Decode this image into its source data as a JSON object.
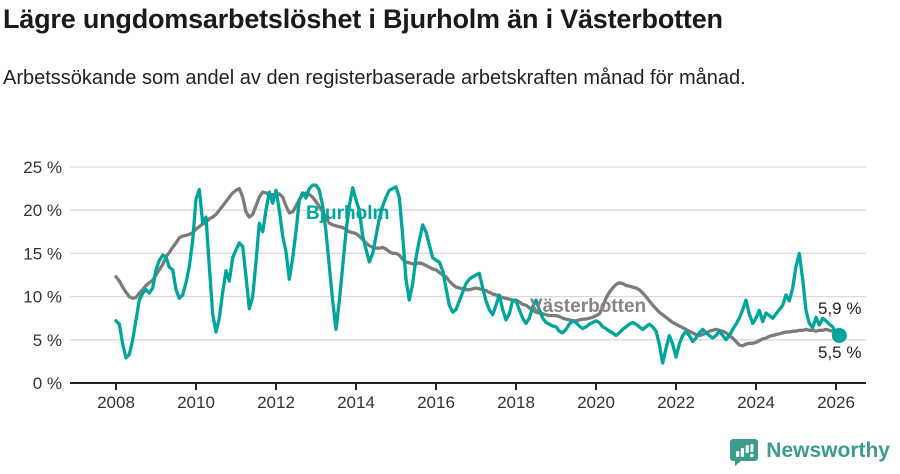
{
  "header": {
    "title": "Lägre ungdomsarbetslöshet i Bjurholm än i Västerbotten",
    "subtitle": "Arbetssökande som andel av den registerbaserade arbetskraften månad för månad."
  },
  "footer": {
    "brand": "Newsworthy",
    "logo_icon": "bar-chart-speech-bubble-icon"
  },
  "colors": {
    "bjurholm_line": "#00a59b",
    "vasterbotten_line": "#7b7b7b",
    "vasterbotten_label": "#858585",
    "axis": "#222222",
    "gridline": "#d9d9d9",
    "tick_text": "#333333",
    "brand_teal": "#3d9b8f"
  },
  "chart_data": {
    "type": "line",
    "title": "Lägre ungdomsarbetslöshet i Bjurholm än i Västerbotten",
    "subtitle": "Arbetssökande som andel av den registerbaserade arbetskraften månad för månad.",
    "x_unit": "month",
    "x_start": "2008-01",
    "x_end": "2026-02",
    "points_per_year": 12,
    "ylim": [
      0,
      25
    ],
    "grid": "horizontal",
    "yticks": [
      0,
      5,
      10,
      15,
      20,
      25
    ],
    "ytick_labels": [
      "0 %",
      "5 %",
      "10 %",
      "15 %",
      "20 %",
      "25 %"
    ],
    "xticks": [
      2008,
      2010,
      2012,
      2014,
      2016,
      2018,
      2020,
      2022,
      2024,
      2026
    ],
    "xtick_labels": [
      "2008",
      "2010",
      "2012",
      "2014",
      "2016",
      "2018",
      "2020",
      "2022",
      "2024",
      "2026"
    ],
    "legend_position": "inline-labels",
    "series": [
      {
        "name": "Västerbotten",
        "color": "#7b7b7b",
        "end_label": "5,9 %",
        "end_value": 5.9,
        "end_dot_radius": 4,
        "values": [
          12.3,
          11.8,
          11.1,
          10.5,
          10.0,
          9.8,
          9.9,
          10.4,
          10.8,
          11.3,
          11.6,
          11.9,
          12.5,
          13.1,
          13.7,
          14.6,
          15.1,
          15.7,
          16.2,
          16.8,
          17.0,
          17.1,
          17.2,
          17.4,
          17.8,
          18.1,
          18.4,
          18.6,
          19.0,
          19.2,
          19.5,
          20.0,
          20.5,
          21.0,
          21.5,
          22.0,
          22.3,
          22.5,
          21.5,
          19.8,
          19.2,
          19.5,
          20.5,
          21.5,
          22.1,
          22.0,
          21.8,
          21.8,
          21.8,
          21.9,
          21.5,
          20.5,
          19.7,
          19.8,
          20.5,
          21.2,
          21.8,
          22.0,
          21.8,
          21.5,
          21.0,
          20.4,
          19.8,
          19.2,
          18.5,
          18.3,
          18.2,
          18.1,
          18.0,
          17.8,
          17.5,
          17.4,
          17.3,
          17.0,
          16.6,
          16.2,
          15.9,
          15.7,
          15.6,
          15.6,
          15.7,
          15.5,
          15.2,
          15.0,
          15.0,
          14.8,
          14.3,
          14.0,
          13.9,
          13.8,
          13.8,
          13.9,
          13.8,
          13.6,
          13.4,
          13.2,
          13.1,
          12.8,
          12.5,
          12.3,
          11.8,
          11.4,
          11.1,
          11.0,
          10.9,
          10.8,
          10.8,
          10.9,
          11.0,
          10.9,
          10.8,
          10.7,
          10.5,
          10.3,
          10.2,
          10.0,
          9.9,
          9.8,
          9.7,
          9.6,
          9.6,
          9.4,
          9.1,
          9.0,
          8.7,
          8.4,
          8.2,
          8.1,
          8.0,
          7.9,
          7.8,
          7.8,
          7.8,
          7.7,
          7.5,
          7.4,
          7.3,
          7.2,
          7.2,
          7.3,
          7.4,
          7.4,
          7.5,
          7.6,
          7.8,
          8.0,
          8.8,
          9.8,
          10.5,
          11.0,
          11.4,
          11.6,
          11.5,
          11.3,
          11.2,
          11.1,
          11.0,
          10.8,
          10.4,
          10.0,
          9.5,
          9.0,
          8.6,
          8.2,
          7.9,
          7.6,
          7.3,
          7.0,
          6.8,
          6.6,
          6.4,
          6.2,
          6.0,
          5.8,
          5.6,
          5.5,
          5.6,
          5.8,
          6.0,
          6.1,
          6.2,
          6.1,
          6.0,
          5.8,
          5.5,
          5.2,
          4.8,
          4.4,
          4.3,
          4.5,
          4.6,
          4.6,
          4.7,
          4.9,
          5.1,
          5.2,
          5.4,
          5.5,
          5.6,
          5.7,
          5.8,
          5.9,
          5.9,
          6.0,
          6.0,
          6.1,
          6.1,
          6.2,
          6.1,
          6.1,
          6.0,
          6.1,
          6.1,
          6.2,
          6.1,
          6.0,
          6.0,
          5.9
        ]
      },
      {
        "name": "Bjurholm",
        "color": "#00a59b",
        "end_label": "5,5 %",
        "end_value": 5.5,
        "end_dot_radius": 7.5,
        "values": [
          7.2,
          6.8,
          4.5,
          2.9,
          3.3,
          5.0,
          7.3,
          9.6,
          10.4,
          10.8,
          10.4,
          11.0,
          13.1,
          14.2,
          14.8,
          14.6,
          13.4,
          13.1,
          10.8,
          9.8,
          10.2,
          11.6,
          13.5,
          16.5,
          21.3,
          22.4,
          18.5,
          19.2,
          13.5,
          8.0,
          5.9,
          7.5,
          10.5,
          13.0,
          11.8,
          14.5,
          15.4,
          16.2,
          15.8,
          12.3,
          8.6,
          10.0,
          14.0,
          18.5,
          17.5,
          20.0,
          22.1,
          20.8,
          22.3,
          20.0,
          17.0,
          15.2,
          12.0,
          14.5,
          17.5,
          21.2,
          22.0,
          21.4,
          22.5,
          22.9,
          22.9,
          22.3,
          20.5,
          17.5,
          13.5,
          9.5,
          6.2,
          9.5,
          13.5,
          17.5,
          20.5,
          22.6,
          21.2,
          20.0,
          17.0,
          15.5,
          14.0,
          15.0,
          17.0,
          19.0,
          20.5,
          21.5,
          22.3,
          22.5,
          22.7,
          21.5,
          17.0,
          12.0,
          9.6,
          11.5,
          14.5,
          16.5,
          18.3,
          17.5,
          16.0,
          14.5,
          14.2,
          14.0,
          13.0,
          11.0,
          9.0,
          8.2,
          8.5,
          9.5,
          10.5,
          11.5,
          12.0,
          12.3,
          12.5,
          12.7,
          11.0,
          9.5,
          8.5,
          7.9,
          9.0,
          10.2,
          8.5,
          7.3,
          8.0,
          9.6,
          9.5,
          8.5,
          7.5,
          6.9,
          7.5,
          8.8,
          9.6,
          8.5,
          7.5,
          7.0,
          6.8,
          6.6,
          6.5,
          6.0,
          5.8,
          6.2,
          6.8,
          7.2,
          7.0,
          6.6,
          6.3,
          6.5,
          6.8,
          7.0,
          7.2,
          7.0,
          6.5,
          6.3,
          6.0,
          5.8,
          5.5,
          5.8,
          6.2,
          6.5,
          6.8,
          7.0,
          6.8,
          6.5,
          6.2,
          6.5,
          6.8,
          6.5,
          6.0,
          4.5,
          2.3,
          4.0,
          5.5,
          4.5,
          3.0,
          4.5,
          5.5,
          6.0,
          5.5,
          4.8,
          5.2,
          5.8,
          6.2,
          5.8,
          5.5,
          5.2,
          5.5,
          6.0,
          5.5,
          5.0,
          5.5,
          6.2,
          6.8,
          7.5,
          8.5,
          9.6,
          8.0,
          6.9,
          7.5,
          8.4,
          7.1,
          8.1,
          7.8,
          7.5,
          8.0,
          8.5,
          9.0,
          10.2,
          9.5,
          11.0,
          13.5,
          15.0,
          12.0,
          8.4,
          6.9,
          6.4,
          7.6,
          6.7,
          7.5,
          7.2,
          6.8,
          6.5,
          5.8,
          5.5
        ]
      }
    ],
    "annotations": [
      {
        "text": "Bjurholm",
        "series": "Bjurholm",
        "color": "#00a59b"
      },
      {
        "text": "Västerbotten",
        "series": "Västerbotten",
        "color": "#858585"
      }
    ]
  }
}
